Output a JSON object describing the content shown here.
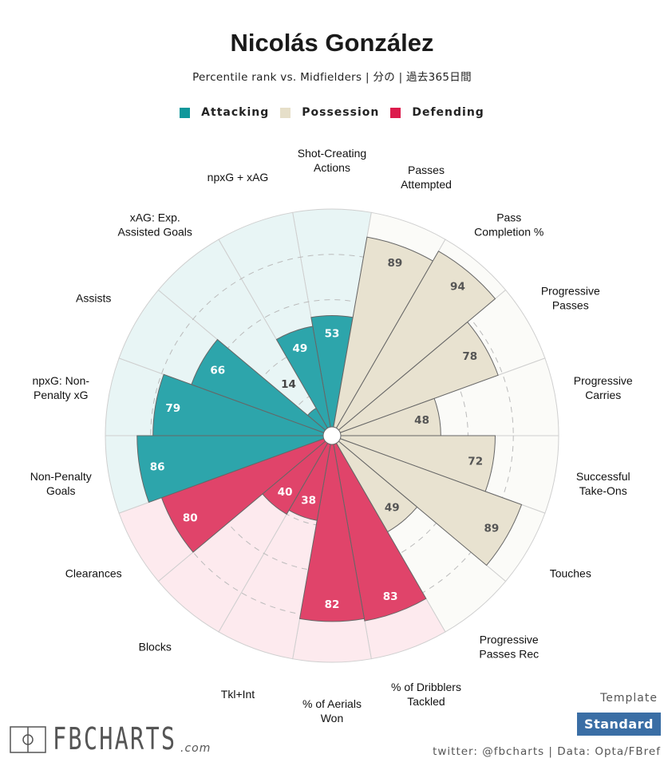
{
  "header": {
    "title": "Nicolás González",
    "subtitle": "Percentile rank vs. Midfielders | 分の | 過去365日間"
  },
  "colors": {
    "Attacking": "#2da5ab",
    "Possession": "#e8e2d0",
    "Defending": "#e0446a",
    "bg_Attacking": "#e8f5f5",
    "bg_Possession": "#fbfbf8",
    "bg_Defending": "#fdeaee",
    "legend_Attacking": "#0f979b",
    "legend_Possession": "#e6dfc9",
    "legend_Defending": "#dc1b4c"
  },
  "chart_data": {
    "type": "polar-bar",
    "title": "Nicolás González",
    "rlim": [
      0,
      100
    ],
    "grid": [
      20,
      40,
      60,
      80
    ],
    "legend": [
      {
        "name": "Attacking"
      },
      {
        "name": "Possession"
      },
      {
        "name": "Defending"
      }
    ],
    "legend_placement": "top",
    "categories": [
      {
        "label": "Shot-Creating\nActions",
        "value": 53,
        "group": "Attacking"
      },
      {
        "label": "Passes\nAttempted",
        "value": 89,
        "group": "Possession"
      },
      {
        "label": "Pass\nCompletion %",
        "value": 94,
        "group": "Possession"
      },
      {
        "label": "Progressive\nPasses",
        "value": 78,
        "group": "Possession"
      },
      {
        "label": "Progressive\nCarries",
        "value": 48,
        "group": "Possession"
      },
      {
        "label": "Successful\nTake-Ons",
        "value": 72,
        "group": "Possession"
      },
      {
        "label": "Touches",
        "value": 89,
        "group": "Possession"
      },
      {
        "label": "Progressive\nPasses Rec",
        "value": 49,
        "group": "Possession"
      },
      {
        "label": "% of Dribblers\nTackled",
        "value": 83,
        "group": "Defending"
      },
      {
        "label": "% of Aerials\nWon",
        "value": 82,
        "group": "Defending"
      },
      {
        "label": "Tkl+Int",
        "value": 38,
        "group": "Defending"
      },
      {
        "label": "Blocks",
        "value": 40,
        "group": "Defending"
      },
      {
        "label": "Clearances",
        "value": 80,
        "group": "Defending"
      },
      {
        "label": "Non-Penalty\nGoals",
        "value": 86,
        "group": "Attacking"
      },
      {
        "label": "npxG: Non-\nPenalty xG",
        "value": 79,
        "group": "Attacking"
      },
      {
        "label": "Assists",
        "value": 66,
        "group": "Attacking"
      },
      {
        "label": "xAG: Exp.\nAssisted Goals",
        "value": 14,
        "group": "Attacking"
      },
      {
        "label": "npxG + xAG",
        "value": 49,
        "group": "Attacking"
      }
    ]
  },
  "footer": {
    "logo": "FBCHARTS",
    "logo_suffix": ".com",
    "template_label": "Template",
    "template_value": "Standard",
    "credit": "twitter: @fbcharts | Data: Opta/FBref"
  }
}
